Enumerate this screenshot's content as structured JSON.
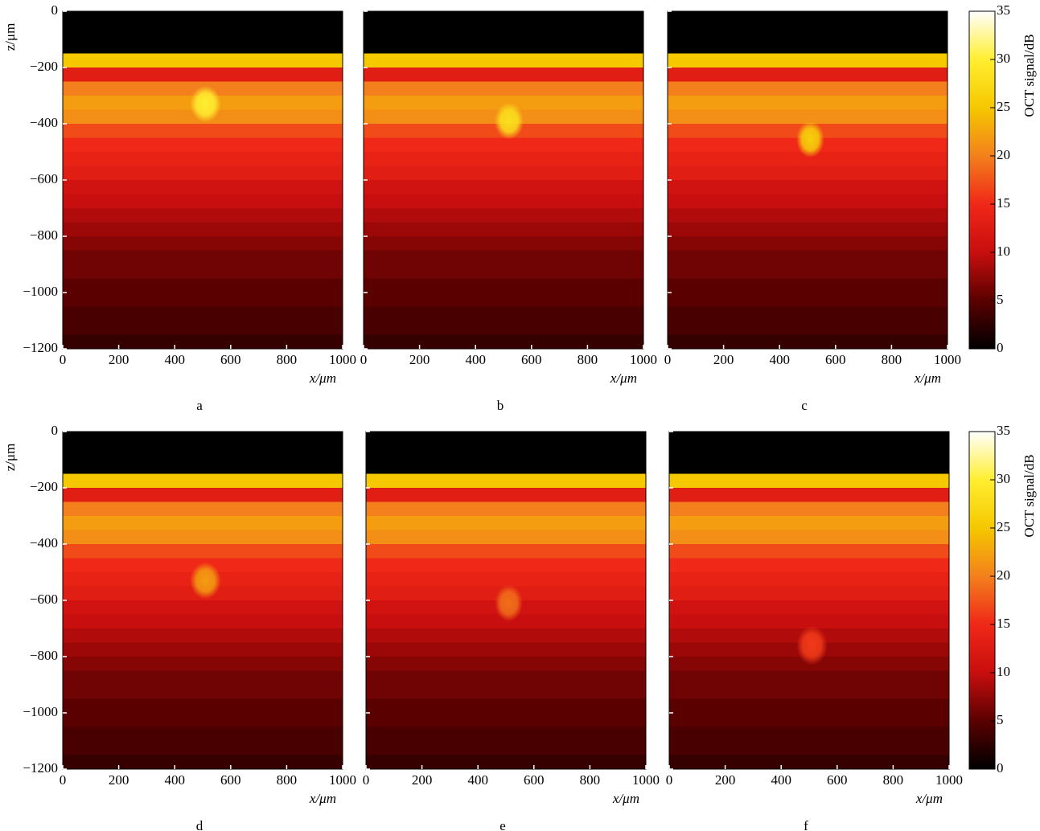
{
  "chart_data": [
    {
      "type": "heatmap",
      "label": "a",
      "xlabel": "x/μm",
      "ylabel": "z/μm",
      "xlim": [
        0,
        1000
      ],
      "xticks": [
        0,
        200,
        400,
        600,
        800,
        1000
      ],
      "ylim": [
        -1200,
        0
      ],
      "yticks": [
        {
          "value": 0,
          "label": "0"
        },
        {
          "value": -200,
          "label": "−200"
        },
        {
          "value": -400,
          "label": "−400"
        },
        {
          "value": -600,
          "label": "−600"
        },
        {
          "value": -800,
          "label": "−800"
        },
        {
          "value": -1000,
          "label": "−1000"
        },
        {
          "value": -1200,
          "label": "−1200"
        }
      ],
      "z_edges": [
        0,
        -50,
        -100,
        -150,
        -200,
        -250,
        -300,
        -350,
        -400,
        -450,
        -500,
        -550,
        -600,
        -650,
        -700,
        -750,
        -800,
        -850,
        -900,
        -950,
        -1000,
        -1050,
        -1100,
        -1150,
        -1200
      ],
      "values": [
        0,
        0,
        0,
        25,
        13,
        20,
        22,
        21,
        17,
        15,
        14,
        13,
        11,
        10,
        9,
        8,
        7,
        6,
        6,
        5,
        5,
        4,
        4,
        3
      ],
      "spot": {
        "x": 510,
        "z": -330,
        "width": 110,
        "height": 130,
        "value": 30
      },
      "clim": [
        0,
        35
      ],
      "colormap": [
        "#000000",
        "#5a0000",
        "#c80e0e",
        "#f02818",
        "#f3801c",
        "#f5c800",
        "#ffee30",
        "#ffffff"
      ]
    },
    {
      "type": "heatmap",
      "label": "b",
      "xlabel": "x/μm",
      "xlim": [
        0,
        1000
      ],
      "xticks": [
        0,
        200,
        400,
        600,
        800,
        1000
      ],
      "ylim": [
        -1200,
        0
      ],
      "yticks": [
        0,
        -200,
        -400,
        -600,
        -800,
        -1000,
        -1200
      ],
      "z_edges": [
        0,
        -50,
        -100,
        -150,
        -200,
        -250,
        -300,
        -350,
        -400,
        -450,
        -500,
        -550,
        -600,
        -650,
        -700,
        -750,
        -800,
        -850,
        -900,
        -950,
        -1000,
        -1050,
        -1100,
        -1150,
        -1200
      ],
      "values": [
        0,
        0,
        0,
        25,
        13,
        20,
        22,
        21,
        17,
        15,
        14,
        13,
        11,
        10,
        9,
        8,
        7,
        6,
        6,
        5,
        5,
        4,
        4,
        3
      ],
      "spot": {
        "x": 520,
        "z": -390,
        "width": 105,
        "height": 130,
        "value": 28
      },
      "clim": [
        0,
        35
      ],
      "colormap": [
        "#000000",
        "#5a0000",
        "#c80e0e",
        "#f02818",
        "#f3801c",
        "#f5c800",
        "#ffee30",
        "#ffffff"
      ]
    },
    {
      "type": "heatmap",
      "label": "c",
      "xlabel": "x/μm",
      "xlim": [
        0,
        1000
      ],
      "xticks": [
        0,
        200,
        400,
        600,
        800,
        1000
      ],
      "ylim": [
        -1200,
        0
      ],
      "yticks": [
        0,
        -200,
        -400,
        -600,
        -800,
        -1000,
        -1200
      ],
      "z_edges": [
        0,
        -50,
        -100,
        -150,
        -200,
        -250,
        -300,
        -350,
        -400,
        -450,
        -500,
        -550,
        -600,
        -650,
        -700,
        -750,
        -800,
        -850,
        -900,
        -950,
        -1000,
        -1050,
        -1100,
        -1150,
        -1200
      ],
      "values": [
        0,
        0,
        0,
        25,
        13,
        20,
        22,
        21,
        17,
        15,
        14,
        13,
        11,
        10,
        9,
        8,
        7,
        6,
        6,
        5,
        5,
        4,
        4,
        3
      ],
      "spot": {
        "x": 510,
        "z": -455,
        "width": 100,
        "height": 130,
        "value": 26
      },
      "clim": [
        0,
        35
      ],
      "colormap": [
        "#000000",
        "#5a0000",
        "#c80e0e",
        "#f02818",
        "#f3801c",
        "#f5c800",
        "#ffee30",
        "#ffffff"
      ],
      "colorbar": {
        "label": "OCT signal/dB",
        "ticks": [
          0,
          5,
          10,
          15,
          20,
          25,
          30,
          35
        ]
      }
    },
    {
      "type": "heatmap",
      "label": "d",
      "xlabel": "x/μm",
      "ylabel": "z/μm",
      "xlim": [
        0,
        1000
      ],
      "xticks": [
        0,
        200,
        400,
        600,
        800,
        1000
      ],
      "ylim": [
        -1200,
        0
      ],
      "yticks": [
        {
          "value": 0,
          "label": "0"
        },
        {
          "value": -200,
          "label": "−200"
        },
        {
          "value": -400,
          "label": "−400"
        },
        {
          "value": -600,
          "label": "−600"
        },
        {
          "value": -800,
          "label": "−800"
        },
        {
          "value": -1000,
          "label": "−1000"
        },
        {
          "value": -1200,
          "label": "−1200"
        }
      ],
      "z_edges": [
        0,
        -50,
        -100,
        -150,
        -200,
        -250,
        -300,
        -350,
        -400,
        -450,
        -500,
        -550,
        -600,
        -650,
        -700,
        -750,
        -800,
        -850,
        -900,
        -950,
        -1000,
        -1050,
        -1100,
        -1150,
        -1200
      ],
      "values": [
        0,
        0,
        0,
        25,
        13,
        20,
        22,
        21,
        17,
        15,
        14,
        13,
        11,
        10,
        9,
        8,
        7,
        6,
        6,
        5,
        5,
        4,
        4,
        3
      ],
      "spot": {
        "x": 510,
        "z": -530,
        "width": 110,
        "height": 130,
        "value": 22
      },
      "clim": [
        0,
        35
      ],
      "colormap": [
        "#000000",
        "#5a0000",
        "#c80e0e",
        "#f02818",
        "#f3801c",
        "#f5c800",
        "#ffee30",
        "#ffffff"
      ]
    },
    {
      "type": "heatmap",
      "label": "e",
      "xlabel": "x/μm",
      "xlim": [
        0,
        1000
      ],
      "xticks": [
        0,
        200,
        400,
        600,
        800,
        1000
      ],
      "ylim": [
        -1200,
        0
      ],
      "yticks": [
        0,
        -200,
        -400,
        -600,
        -800,
        -1000,
        -1200
      ],
      "z_edges": [
        0,
        -50,
        -100,
        -150,
        -200,
        -250,
        -300,
        -350,
        -400,
        -450,
        -500,
        -550,
        -600,
        -650,
        -700,
        -750,
        -800,
        -850,
        -900,
        -950,
        -1000,
        -1050,
        -1100,
        -1150,
        -1200
      ],
      "values": [
        0,
        0,
        0,
        25,
        13,
        20,
        22,
        21,
        17,
        15,
        14,
        13,
        11,
        10,
        9,
        8,
        7,
        6,
        6,
        5,
        5,
        4,
        4,
        3
      ],
      "spot": {
        "x": 510,
        "z": -610,
        "width": 100,
        "height": 130,
        "value": 19
      },
      "clim": [
        0,
        35
      ],
      "colormap": [
        "#000000",
        "#5a0000",
        "#c80e0e",
        "#f02818",
        "#f3801c",
        "#f5c800",
        "#ffee30",
        "#ffffff"
      ]
    },
    {
      "type": "heatmap",
      "label": "f",
      "xlabel": "x/μm",
      "xlim": [
        0,
        1000
      ],
      "xticks": [
        0,
        200,
        400,
        600,
        800,
        1000
      ],
      "ylim": [
        -1200,
        0
      ],
      "yticks": [
        0,
        -200,
        -400,
        -600,
        -800,
        -1000,
        -1200
      ],
      "z_edges": [
        0,
        -50,
        -100,
        -150,
        -200,
        -250,
        -300,
        -350,
        -400,
        -450,
        -500,
        -550,
        -600,
        -650,
        -700,
        -750,
        -800,
        -850,
        -900,
        -950,
        -1000,
        -1050,
        -1100,
        -1150,
        -1200
      ],
      "values": [
        0,
        0,
        0,
        25,
        13,
        20,
        22,
        21,
        17,
        15,
        14,
        13,
        11,
        10,
        9,
        8,
        7,
        6,
        6,
        5,
        5,
        4,
        4,
        3
      ],
      "spot": {
        "x": 510,
        "z": -760,
        "width": 110,
        "height": 140,
        "value": 16
      },
      "clim": [
        0,
        35
      ],
      "colormap": [
        "#000000",
        "#5a0000",
        "#c80e0e",
        "#f02818",
        "#f3801c",
        "#f5c800",
        "#ffee30",
        "#ffffff"
      ],
      "colorbar": {
        "label": "OCT signal/dB",
        "ticks": [
          0,
          5,
          10,
          15,
          20,
          25,
          30,
          35
        ]
      }
    }
  ]
}
